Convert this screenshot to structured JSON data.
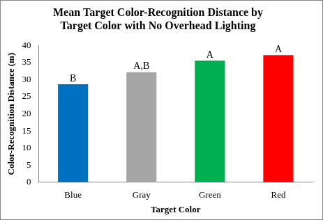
{
  "chart_data": {
    "type": "bar",
    "title": [
      "Mean Target Color-Recognition Distance by",
      "Target Color with No Overhead Lighting"
    ],
    "x_label": "Target Color",
    "y_label": "Color-Recognition Distance (m)",
    "categories": [
      "Blue",
      "Gray",
      "Green",
      "Red"
    ],
    "values": [
      28.7,
      32.2,
      35.6,
      37.2
    ],
    "colors": [
      "#0070c0",
      "#a6a6a6",
      "#00b050",
      "#ff0000"
    ],
    "annotations": [
      "B",
      "A,B",
      "A",
      "A"
    ],
    "ylim": [
      0,
      40
    ],
    "yticks": [
      0,
      5,
      10,
      15,
      20,
      25,
      30,
      35,
      40
    ],
    "grid": false
  }
}
